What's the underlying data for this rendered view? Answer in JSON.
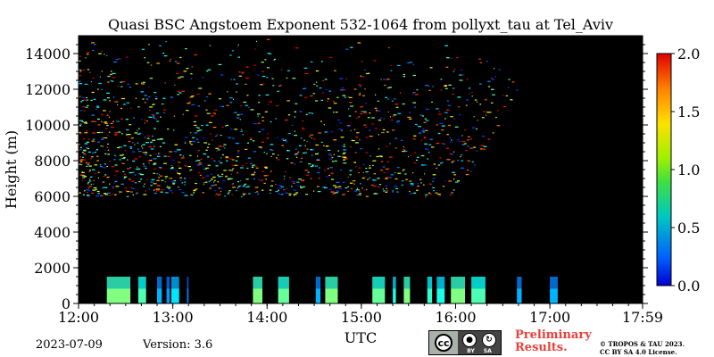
{
  "chart_data": {
    "type": "heatmap",
    "title": "Quasi BSC Angstoem Exponent 532-1064 from pollyxt_tau at Tel_Aviv",
    "xlabel": "UTC",
    "ylabel": "Height (m)",
    "xlim": [
      "12:00",
      "17:59"
    ],
    "ylim": [
      0,
      15000
    ],
    "x_ticks": [
      "12:00",
      "13:00",
      "14:00",
      "15:00",
      "16:00",
      "17:00",
      "17:59"
    ],
    "y_ticks": [
      0,
      2000,
      4000,
      6000,
      8000,
      10000,
      12000,
      14000
    ],
    "colorbar": {
      "min": 0.0,
      "max": 2.0,
      "ticks": [
        "0.0",
        "0.5",
        "1.0",
        "1.5",
        "2.0"
      ],
      "colormap": "jet"
    },
    "background_color": "#000000",
    "low_level_layer": {
      "height_range_m": [
        0,
        1500
      ],
      "segments": [
        {
          "start": "12:18",
          "end": "12:33",
          "value": 1.0
        },
        {
          "start": "12:38",
          "end": "12:43",
          "value": 0.9
        },
        {
          "start": "12:50",
          "end": "12:53",
          "value": 0.6
        },
        {
          "start": "12:56",
          "end": "12:58",
          "value": 0.55
        },
        {
          "start": "12:59",
          "end": "13:04",
          "value": 0.7
        },
        {
          "start": "13:09",
          "end": "13:10",
          "value": 0.5
        },
        {
          "start": "13:51",
          "end": "13:57",
          "value": 1.0
        },
        {
          "start": "14:07",
          "end": "14:14",
          "value": 0.95
        },
        {
          "start": "14:31",
          "end": "14:34",
          "value": 0.6
        },
        {
          "start": "14:37",
          "end": "14:45",
          "value": 1.0
        },
        {
          "start": "15:07",
          "end": "15:15",
          "value": 0.95
        },
        {
          "start": "15:20",
          "end": "15:22",
          "value": 0.8
        },
        {
          "start": "15:27",
          "end": "15:31",
          "value": 1.0
        },
        {
          "start": "15:42",
          "end": "15:45",
          "value": 0.85
        },
        {
          "start": "15:48",
          "end": "15:53",
          "value": 0.8
        },
        {
          "start": "15:57",
          "end": "16:06",
          "value": 1.0
        },
        {
          "start": "16:10",
          "end": "16:19",
          "value": 0.9
        },
        {
          "start": "16:39",
          "end": "16:42",
          "value": 0.6
        },
        {
          "start": "17:00",
          "end": "17:05",
          "value": 0.6
        }
      ]
    },
    "upper_scatter": {
      "height_range_m": [
        6000,
        15000
      ],
      "time_range": [
        "12:00",
        "16:00"
      ],
      "value_range": [
        0.3,
        1.9
      ]
    }
  },
  "footer": {
    "date": "2023-07-09",
    "version": "Version: 3.6",
    "license_badge": {
      "tags": [
        "BY",
        "SA"
      ]
    },
    "preliminary": [
      "Preliminary",
      "Results."
    ],
    "copyright": [
      "© TROPOS & TAU 2023.",
      "CC BY SA 4.0 License."
    ]
  }
}
